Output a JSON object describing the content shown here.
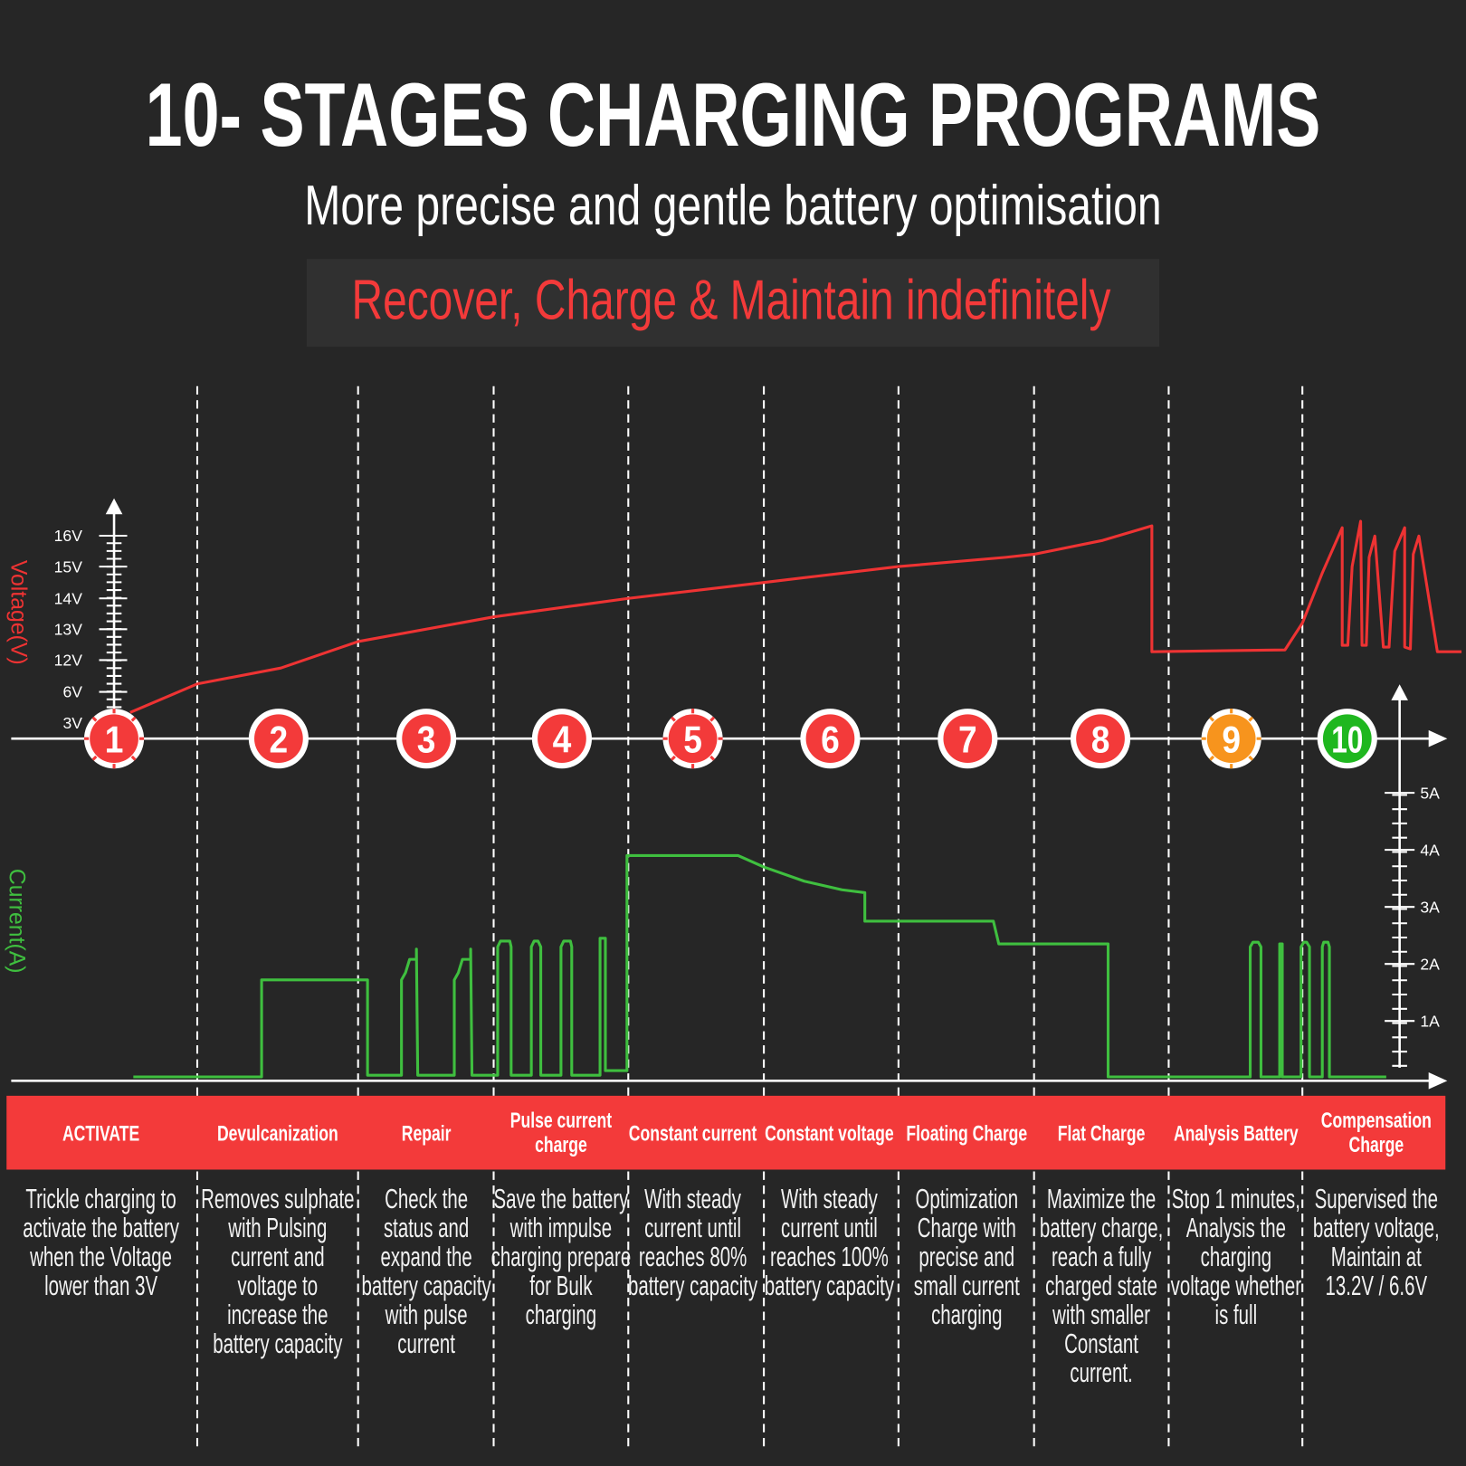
{
  "header": {
    "title": "10- STAGES CHARGING PROGRAMS",
    "subtitle": "More precise and gentle battery optimisation",
    "tagline": "Recover, Charge & Maintain indefinitely"
  },
  "colors": {
    "background": "#262626",
    "accent_red": "#f33a3a",
    "voltage_line": "#ee3333",
    "current_line": "#3fbf3f",
    "stage9": "#f7941d",
    "stage10": "#1fb71f"
  },
  "chart_data": {
    "type": "line",
    "title": "10- STAGES CHARGING PROGRAMS",
    "x_unit": "stage (0-10, each integer = stage boundary)",
    "voltage_axis": {
      "label": "Voltage(V)",
      "ticks": [
        "3V",
        "6V",
        "12V",
        "13V",
        "14V",
        "15V",
        "16V"
      ],
      "tick_values": [
        3,
        6,
        12,
        13,
        14,
        15,
        16
      ]
    },
    "current_axis": {
      "label": "Current(A)",
      "ticks": [
        "1A",
        "2A",
        "3A",
        "4A",
        "5A"
      ],
      "tick_values": [
        1,
        2,
        3,
        4,
        5
      ]
    },
    "series": [
      {
        "name": "Voltage",
        "unit": "V",
        "points": [
          [
            0.58,
            4
          ],
          [
            1.0,
            7.5
          ],
          [
            1.52,
            10.5
          ],
          [
            2.0,
            12.6
          ],
          [
            3.0,
            13.4
          ],
          [
            4.0,
            14.0
          ],
          [
            5.0,
            14.5
          ],
          [
            6.0,
            15.0
          ],
          [
            6.79,
            15.3
          ],
          [
            7.0,
            15.4
          ],
          [
            7.51,
            15.85
          ],
          [
            7.875,
            16.32
          ],
          [
            7.875,
            12.27
          ],
          [
            8.87,
            12.33
          ],
          [
            9.0,
            13.2
          ],
          [
            9.14,
            14.8
          ],
          [
            9.28,
            16.26
          ],
          [
            9.28,
            12.48
          ],
          [
            9.32,
            12.48
          ],
          [
            9.35,
            15.0
          ],
          [
            9.41,
            16.47
          ],
          [
            9.42,
            12.48
          ],
          [
            9.45,
            12.48
          ],
          [
            9.47,
            15.3
          ],
          [
            9.51,
            15.99
          ],
          [
            9.57,
            12.42
          ],
          [
            9.61,
            12.42
          ],
          [
            9.65,
            15.5
          ],
          [
            9.72,
            16.26
          ],
          [
            9.72,
            12.42
          ],
          [
            9.76,
            12.36
          ],
          [
            9.78,
            15.4
          ],
          [
            9.82,
            15.99
          ],
          [
            9.95,
            12.27
          ],
          [
            10.12,
            12.27
          ]
        ]
      },
      {
        "name": "Current",
        "unit": "A",
        "points": [
          [
            0.6,
            0.02
          ],
          [
            1.4,
            0.02
          ],
          [
            1.4,
            1.72
          ],
          [
            2.07,
            1.72
          ],
          [
            2.07,
            0.05
          ],
          [
            2.32,
            0.05
          ],
          [
            2.32,
            1.72
          ],
          [
            2.35,
            1.85
          ],
          [
            2.38,
            2.08
          ],
          [
            2.43,
            2.08
          ],
          [
            2.43,
            2.26
          ],
          [
            2.44,
            0.05
          ],
          [
            2.71,
            0.05
          ],
          [
            2.71,
            1.72
          ],
          [
            2.74,
            1.85
          ],
          [
            2.77,
            2.08
          ],
          [
            2.83,
            2.08
          ],
          [
            2.83,
            2.26
          ],
          [
            2.84,
            0.05
          ],
          [
            3.03,
            0.05
          ],
          [
            3.03,
            2.3
          ],
          [
            3.05,
            2.4
          ],
          [
            3.12,
            2.4
          ],
          [
            3.13,
            2.3
          ],
          [
            3.13,
            0.05
          ],
          [
            3.28,
            0.05
          ],
          [
            3.28,
            2.3
          ],
          [
            3.3,
            2.4
          ],
          [
            3.33,
            2.4
          ],
          [
            3.35,
            2.3
          ],
          [
            3.35,
            0.05
          ],
          [
            3.5,
            0.05
          ],
          [
            3.5,
            2.3
          ],
          [
            3.52,
            2.4
          ],
          [
            3.57,
            2.4
          ],
          [
            3.58,
            2.3
          ],
          [
            3.58,
            0.05
          ],
          [
            3.79,
            0.05
          ],
          [
            3.79,
            2.45
          ],
          [
            3.83,
            2.45
          ],
          [
            3.83,
            0.13
          ],
          [
            3.99,
            0.13
          ],
          [
            3.99,
            3.9
          ],
          [
            4.81,
            3.9
          ],
          [
            5.0,
            3.7
          ],
          [
            5.3,
            3.45
          ],
          [
            5.58,
            3.3
          ],
          [
            5.75,
            3.25
          ],
          [
            5.75,
            2.75
          ],
          [
            6.7,
            2.75
          ],
          [
            6.74,
            2.35
          ],
          [
            7.55,
            2.35
          ],
          [
            7.55,
            0.02
          ],
          [
            8.61,
            0.02
          ],
          [
            8.61,
            2.3
          ],
          [
            8.63,
            2.38
          ],
          [
            8.67,
            2.38
          ],
          [
            8.69,
            2.3
          ],
          [
            8.69,
            0.02
          ],
          [
            8.83,
            0.02
          ],
          [
            8.83,
            2.35
          ],
          [
            8.85,
            2.35
          ],
          [
            8.85,
            0.02
          ],
          [
            8.99,
            0.02
          ],
          [
            8.99,
            2.3
          ],
          [
            9.01,
            2.38
          ],
          [
            9.03,
            2.38
          ],
          [
            9.05,
            2.3
          ],
          [
            9.05,
            0.02
          ],
          [
            9.14,
            0.02
          ],
          [
            9.14,
            2.3
          ],
          [
            9.15,
            2.38
          ],
          [
            9.18,
            2.38
          ],
          [
            9.19,
            2.3
          ],
          [
            9.19,
            0.02
          ],
          [
            9.59,
            0.02
          ]
        ]
      }
    ]
  },
  "stages": [
    {
      "number": "1",
      "name": "ACTIVATE",
      "desc": [
        "Trickle charging to",
        "activate the battery",
        "when the Voltage",
        "lower than 3V"
      ]
    },
    {
      "number": "2",
      "name": "Devulcanization",
      "desc": [
        "Removes sulphate",
        "with  Pulsing",
        "current and",
        "voltage to",
        "increase the",
        "battery capacity"
      ]
    },
    {
      "number": "3",
      "name": "Repair",
      "desc": [
        "Check the",
        "status and",
        "expand the",
        "battery capacity",
        "with pulse",
        "current"
      ]
    },
    {
      "number": "4",
      "name": [
        "Pulse current",
        "charge"
      ],
      "desc": [
        "Save the battery",
        "with impulse",
        "charging prepare",
        "for Bulk",
        "charging"
      ]
    },
    {
      "number": "5",
      "name": "Constant current",
      "desc": [
        "With steady",
        "current until",
        "reaches 80%",
        "battery capacity"
      ]
    },
    {
      "number": "6",
      "name": "Constant voltage",
      "desc": [
        "With steady",
        "current until",
        "reaches 100%",
        "battery capacity"
      ]
    },
    {
      "number": "7",
      "name": "Floating Charge",
      "desc": [
        "Optimization",
        "Charge with",
        "precise and",
        "small current",
        "charging"
      ]
    },
    {
      "number": "8",
      "name": "Flat Charge",
      "desc": [
        "Maximize the",
        "battery charge,",
        "reach a fully",
        "charged state",
        "with smaller",
        "Constant",
        "current."
      ]
    },
    {
      "number": "9",
      "name": "Analysis Battery",
      "desc": [
        "Stop 1 minutes,",
        "Analysis the",
        "charging",
        "voltage whether",
        "is full"
      ]
    },
    {
      "number": "10",
      "name": [
        "Compensation",
        "Charge"
      ],
      "desc": [
        "Supervised the",
        "battery voltage,",
        "Maintain at",
        "13.2V / 6.6V"
      ]
    }
  ]
}
